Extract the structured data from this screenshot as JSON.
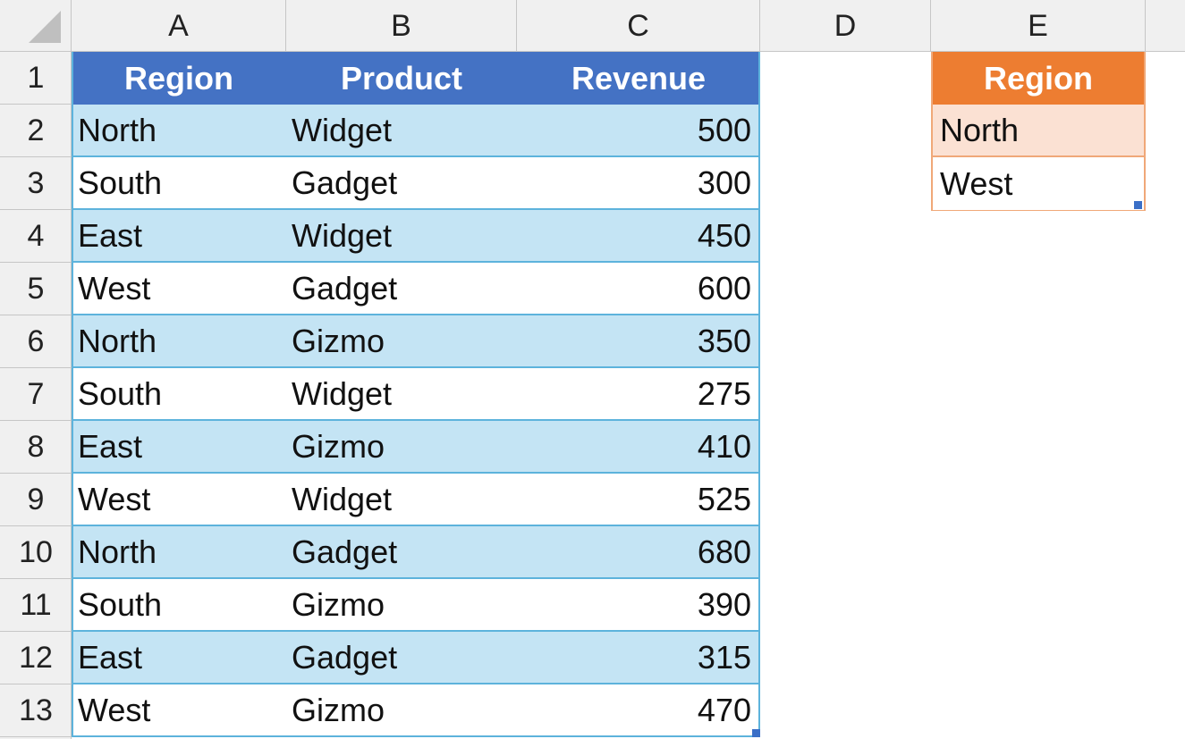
{
  "sheet": {
    "columns": [
      "A",
      "B",
      "C",
      "D",
      "E"
    ],
    "rows": [
      "1",
      "2",
      "3",
      "4",
      "5",
      "6",
      "7",
      "8",
      "9",
      "10",
      "11",
      "12",
      "13"
    ]
  },
  "table": {
    "headers": {
      "region": "Region",
      "product": "Product",
      "revenue": "Revenue"
    },
    "rows": [
      {
        "region": "North",
        "product": "Widget",
        "revenue": "500"
      },
      {
        "region": "South",
        "product": "Gadget",
        "revenue": "300"
      },
      {
        "region": "East",
        "product": "Widget",
        "revenue": "450"
      },
      {
        "region": "West",
        "product": "Gadget",
        "revenue": "600"
      },
      {
        "region": "North",
        "product": "Gizmo",
        "revenue": "350"
      },
      {
        "region": "South",
        "product": "Widget",
        "revenue": "275"
      },
      {
        "region": "East",
        "product": "Gizmo",
        "revenue": "410"
      },
      {
        "region": "West",
        "product": "Widget",
        "revenue": "525"
      },
      {
        "region": "North",
        "product": "Gadget",
        "revenue": "680"
      },
      {
        "region": "South",
        "product": "Gizmo",
        "revenue": "390"
      },
      {
        "region": "East",
        "product": "Gadget",
        "revenue": "315"
      },
      {
        "region": "West",
        "product": "Gizmo",
        "revenue": "470"
      }
    ],
    "colors": {
      "header": "#4472c4",
      "band": "#c4e4f4",
      "border": "#5db3dc"
    }
  },
  "criteria": {
    "header": "Region",
    "values": [
      "North",
      "West"
    ],
    "colors": {
      "header": "#ed7d31",
      "band": "#fbe1d3",
      "border": "#f0a878"
    }
  }
}
